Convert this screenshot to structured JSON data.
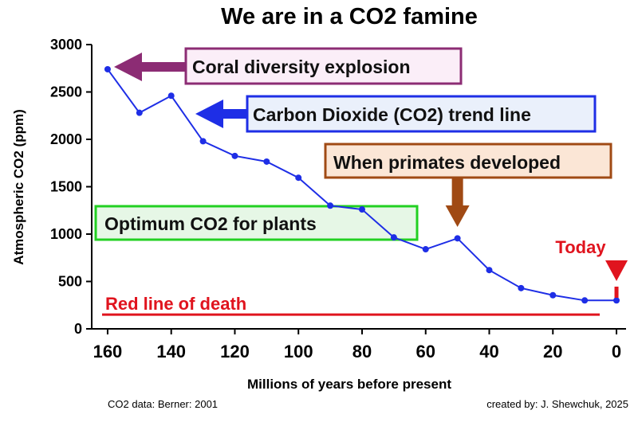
{
  "chart_data": {
    "type": "line",
    "title": "We are in a CO2 famine",
    "xlabel": "Millions of years before present",
    "ylabel": "Atmospheric CO2 (ppm)",
    "xlim": [
      165,
      -3
    ],
    "ylim": [
      0,
      3000
    ],
    "x_ticks": [
      160,
      140,
      120,
      100,
      80,
      60,
      40,
      20,
      0
    ],
    "y_ticks": [
      0,
      500,
      1000,
      1500,
      2000,
      2500,
      3000
    ],
    "grid": false,
    "series": [
      {
        "x": [
          160,
          150,
          140,
          130,
          120,
          110,
          100,
          90,
          80,
          70,
          60,
          50,
          40,
          30,
          20,
          10,
          0
        ],
        "y": [
          2740,
          2280,
          2460,
          1980,
          1825,
          1765,
          1595,
          1300,
          1260,
          965,
          840,
          955,
          620,
          430,
          355,
          300,
          300
        ],
        "color": "#1e2ee6"
      }
    ],
    "reference_line": {
      "label": "Red line of death",
      "y": 150,
      "color": "#e0141e"
    },
    "annotations": [
      {
        "id": "coral",
        "text": "Coral diversity explosion",
        "box_border": "#8c2c74",
        "box_fill": "#fbeef8",
        "arrow_color": "#8c2c74"
      },
      {
        "id": "trend",
        "text": "Carbon Dioxide (CO2) trend line",
        "box_border": "#1e2ee6",
        "box_fill": "#eaf0fb",
        "arrow_color": "#1e2ee6"
      },
      {
        "id": "primates",
        "text": "When primates developed",
        "box_border": "#a04a14",
        "box_fill": "#fbe6d6",
        "arrow_color": "#a04a14",
        "x": 50
      },
      {
        "id": "optimum",
        "text": "Optimum CO2 for plants",
        "box_border": "#22d022",
        "box_fill": "#e6f7e6"
      },
      {
        "id": "today",
        "text": "Today",
        "color": "#e0141e",
        "x": 0
      }
    ],
    "credits": {
      "source": "CO2 data: Berner: 2001",
      "author": "created by: J. Shewchuk, 2025"
    }
  }
}
